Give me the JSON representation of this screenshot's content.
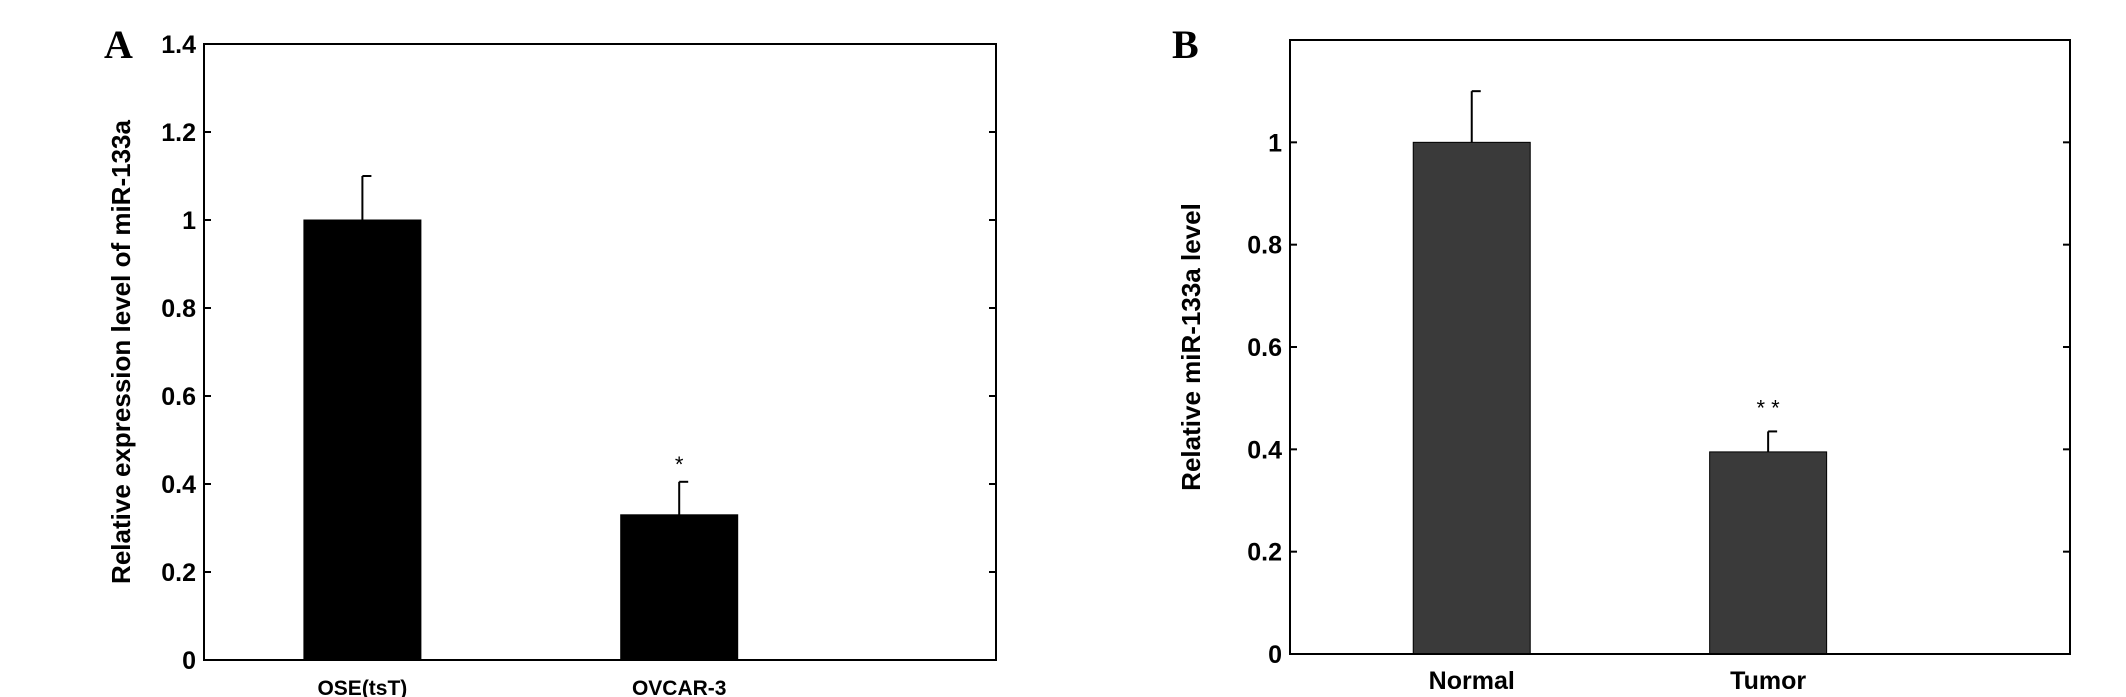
{
  "chart_data": [
    {
      "panel": "A",
      "type": "bar",
      "categories": [
        "OSE(tsT)",
        "OVCAR-3"
      ],
      "values": [
        1.0,
        0.33
      ],
      "errors": [
        0.1,
        0.075
      ],
      "annotations": [
        "",
        "*"
      ],
      "title": "",
      "xlabel": "",
      "ylabel": "Relative expression level of miR-133a",
      "ylim": [
        0,
        1.4
      ],
      "yticks": [
        "0",
        "0.2",
        "0.4",
        "0.6",
        "0.8",
        "1",
        "1.2",
        "1.4"
      ],
      "ytick_values": [
        0,
        0.2,
        0.4,
        0.6,
        0.8,
        1.0,
        1.2,
        1.4
      ],
      "bar_color": "#000000",
      "grid": false
    },
    {
      "panel": "B",
      "type": "bar",
      "categories": [
        "Normal",
        "Tumor"
      ],
      "values": [
        1.0,
        0.395
      ],
      "errors": [
        0.1,
        0.04
      ],
      "annotations": [
        "",
        "* *"
      ],
      "title": "",
      "xlabel": "",
      "ylabel": "Relative miR-133a level",
      "ylim": [
        0,
        1.2
      ],
      "yticks": [
        "0",
        "0.2",
        "0.4",
        "0.6",
        "0.8",
        "1"
      ],
      "ytick_values": [
        0,
        0.2,
        0.4,
        0.6,
        0.8,
        1.0
      ],
      "bar_color": "#3a3a3a",
      "grid": false
    }
  ]
}
